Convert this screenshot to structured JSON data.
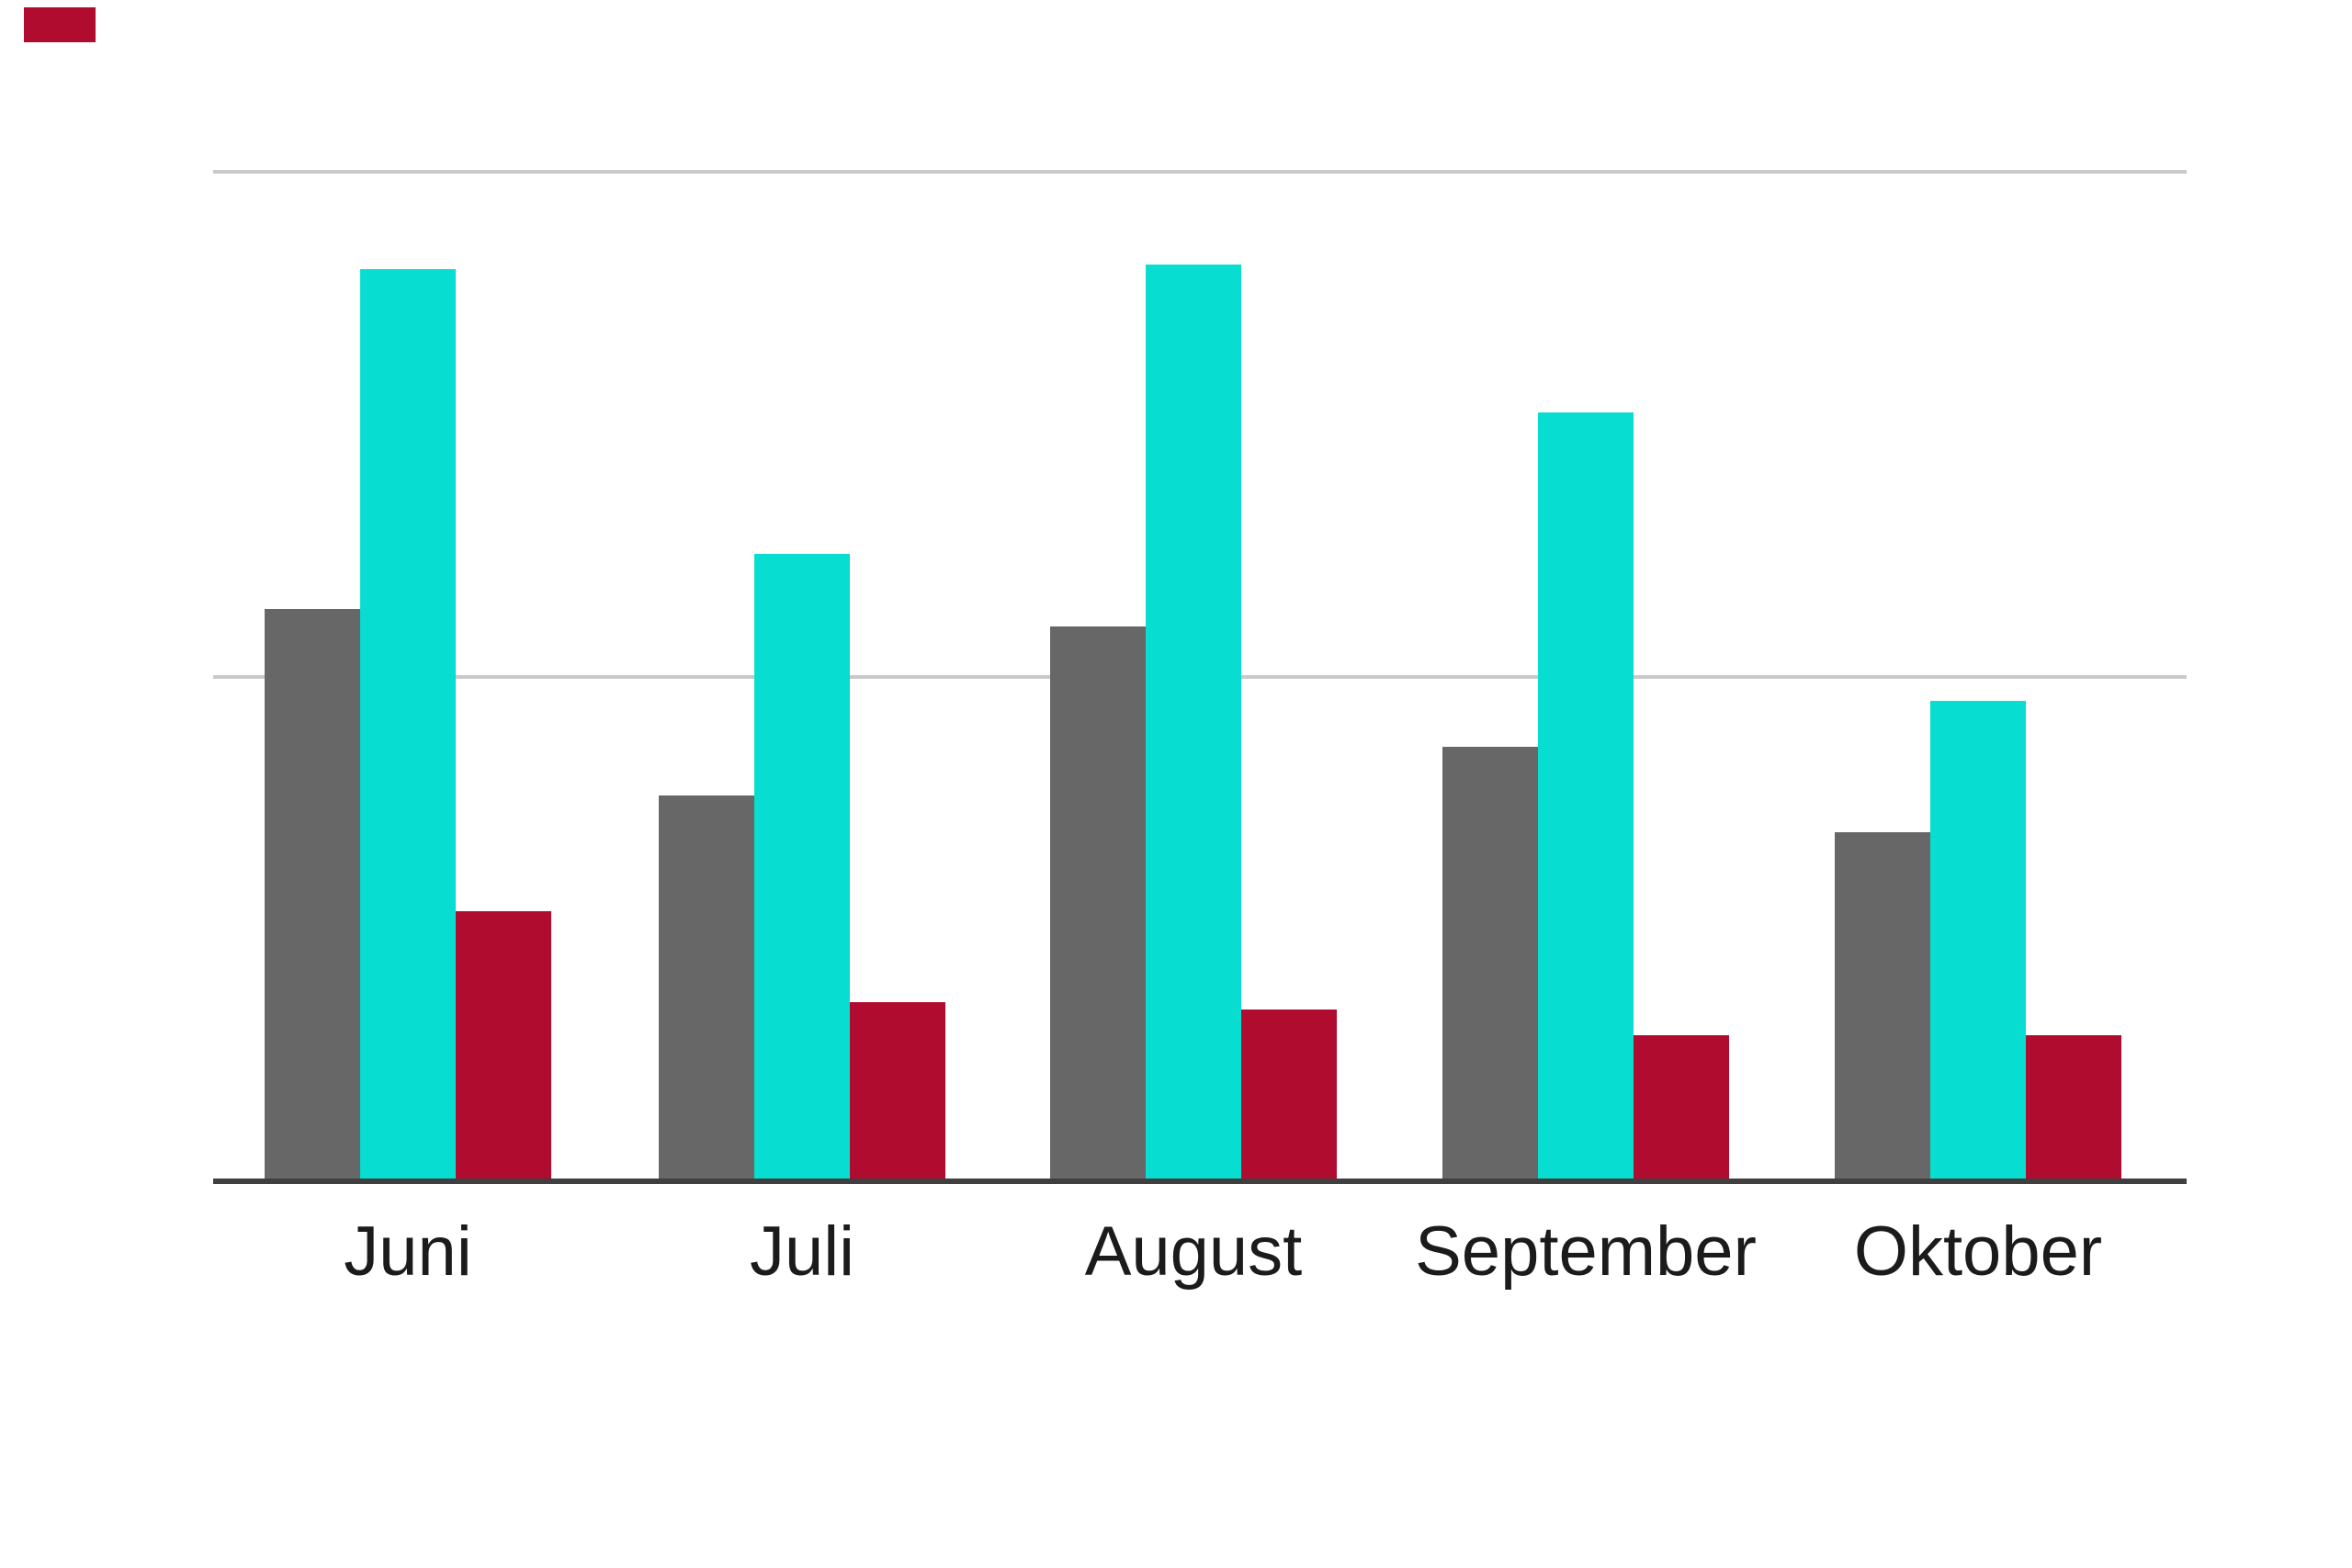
{
  "chart_data": {
    "type": "bar",
    "title": "",
    "xlabel": "",
    "ylabel": "",
    "categories": [
      "Juni",
      "Juli",
      "August",
      "September",
      "Oktober"
    ],
    "series": [
      {
        "name": "gray-series",
        "color": "#676767",
        "values": [
          56.7,
          38.3,
          55.0,
          43.1,
          34.6
        ]
      },
      {
        "name": "cyan-series",
        "color": "#07ddd0",
        "values": [
          90.4,
          62.2,
          90.8,
          76.2,
          47.6
        ]
      },
      {
        "name": "red-series",
        "color": "#b00c2f",
        "values": [
          26.8,
          17.8,
          17.1,
          14.5,
          14.5
        ]
      }
    ],
    "ylim": [
      0,
      117
    ],
    "gridline_values": [
      50,
      100
    ],
    "grid": "horizontal",
    "legend_position": "none",
    "axis_tick_labels_visible": false
  },
  "colors": {
    "background": "#ffffff",
    "gridline": "#c9c9c9",
    "axis_line": "#3f3f3f",
    "label_text": "#1b1b1b",
    "legend_fragment": "#b00c2f"
  }
}
